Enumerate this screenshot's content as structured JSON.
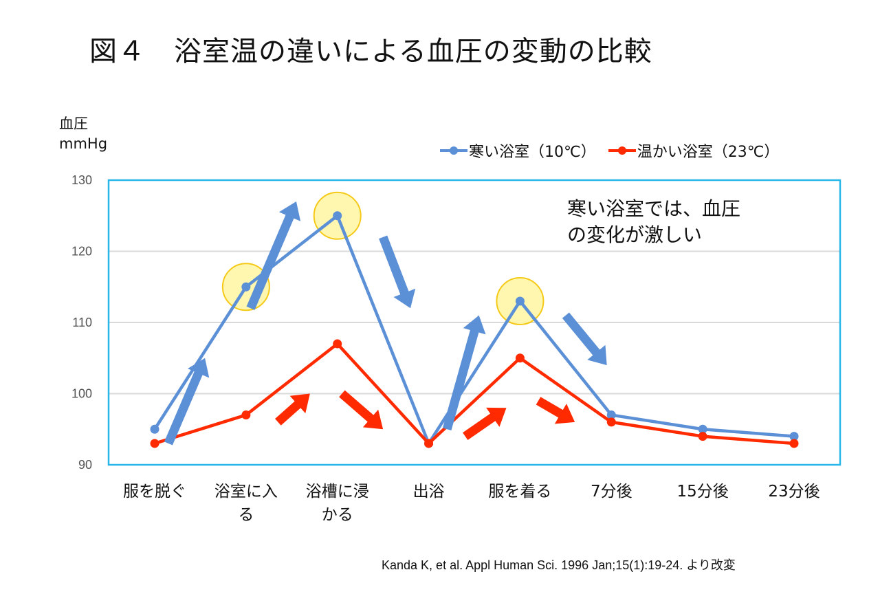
{
  "colors": {
    "cold": "#5b8fd6",
    "warm": "#ff2a00",
    "frame": "#29b6e8",
    "grid": "#d9d9d9",
    "highlight": "#fff7a8",
    "highlight_border": "#f5c400"
  },
  "chart_data": {
    "type": "line",
    "title": "図４　浴室温の違いによる血圧の変動の比較",
    "ylabel": [
      "血圧",
      "mmHg"
    ],
    "ylim": [
      90,
      130
    ],
    "yticks": [
      90,
      100,
      110,
      120,
      130
    ],
    "grid": true,
    "legend_position": "top-right",
    "categories": [
      [
        "服を脱ぐ"
      ],
      [
        "浴室に入",
        "る"
      ],
      [
        "浴槽に浸",
        "かる"
      ],
      [
        "出浴"
      ],
      [
        "服を着る"
      ],
      [
        "7分後"
      ],
      [
        "15分後"
      ],
      [
        "23分後"
      ]
    ],
    "series": [
      {
        "name": "寒い浴室（10℃）",
        "color_key": "cold",
        "values": [
          95,
          115,
          125,
          93,
          113,
          97,
          95,
          94
        ]
      },
      {
        "name": "温かい浴室（23℃）",
        "color_key": "warm",
        "values": [
          93,
          97,
          107,
          93,
          105,
          96,
          94,
          93
        ]
      }
    ],
    "highlighted_points": [
      1,
      2,
      4
    ],
    "annotation": [
      "寒い浴室では、血圧",
      "の変化が激しい"
    ],
    "arrows": [
      {
        "color_key": "cold",
        "from": [
          0.15,
          93
        ],
        "to": [
          0.55,
          105
        ],
        "shape": "up"
      },
      {
        "color_key": "cold",
        "from": [
          1.05,
          112
        ],
        "to": [
          1.55,
          127
        ],
        "shape": "up"
      },
      {
        "color_key": "cold",
        "from": [
          2.5,
          122
        ],
        "to": [
          2.8,
          112
        ],
        "shape": "down"
      },
      {
        "color_key": "cold",
        "from": [
          3.2,
          95
        ],
        "to": [
          3.55,
          111
        ],
        "shape": "up"
      },
      {
        "color_key": "cold",
        "from": [
          4.5,
          111
        ],
        "to": [
          4.95,
          104
        ],
        "shape": "down"
      },
      {
        "color_key": "warm",
        "from": [
          1.35,
          96
        ],
        "to": [
          1.7,
          100
        ],
        "shape": "up"
      },
      {
        "color_key": "warm",
        "from": [
          2.05,
          100
        ],
        "to": [
          2.5,
          95
        ],
        "shape": "down"
      },
      {
        "color_key": "warm",
        "from": [
          3.4,
          94
        ],
        "to": [
          3.85,
          98
        ],
        "shape": "up"
      },
      {
        "color_key": "warm",
        "from": [
          4.2,
          99
        ],
        "to": [
          4.6,
          96
        ],
        "shape": "down"
      }
    ]
  },
  "source": "Kanda K, et al. Appl Human Sci. 1996 Jan;15(1):19-24. より改変"
}
